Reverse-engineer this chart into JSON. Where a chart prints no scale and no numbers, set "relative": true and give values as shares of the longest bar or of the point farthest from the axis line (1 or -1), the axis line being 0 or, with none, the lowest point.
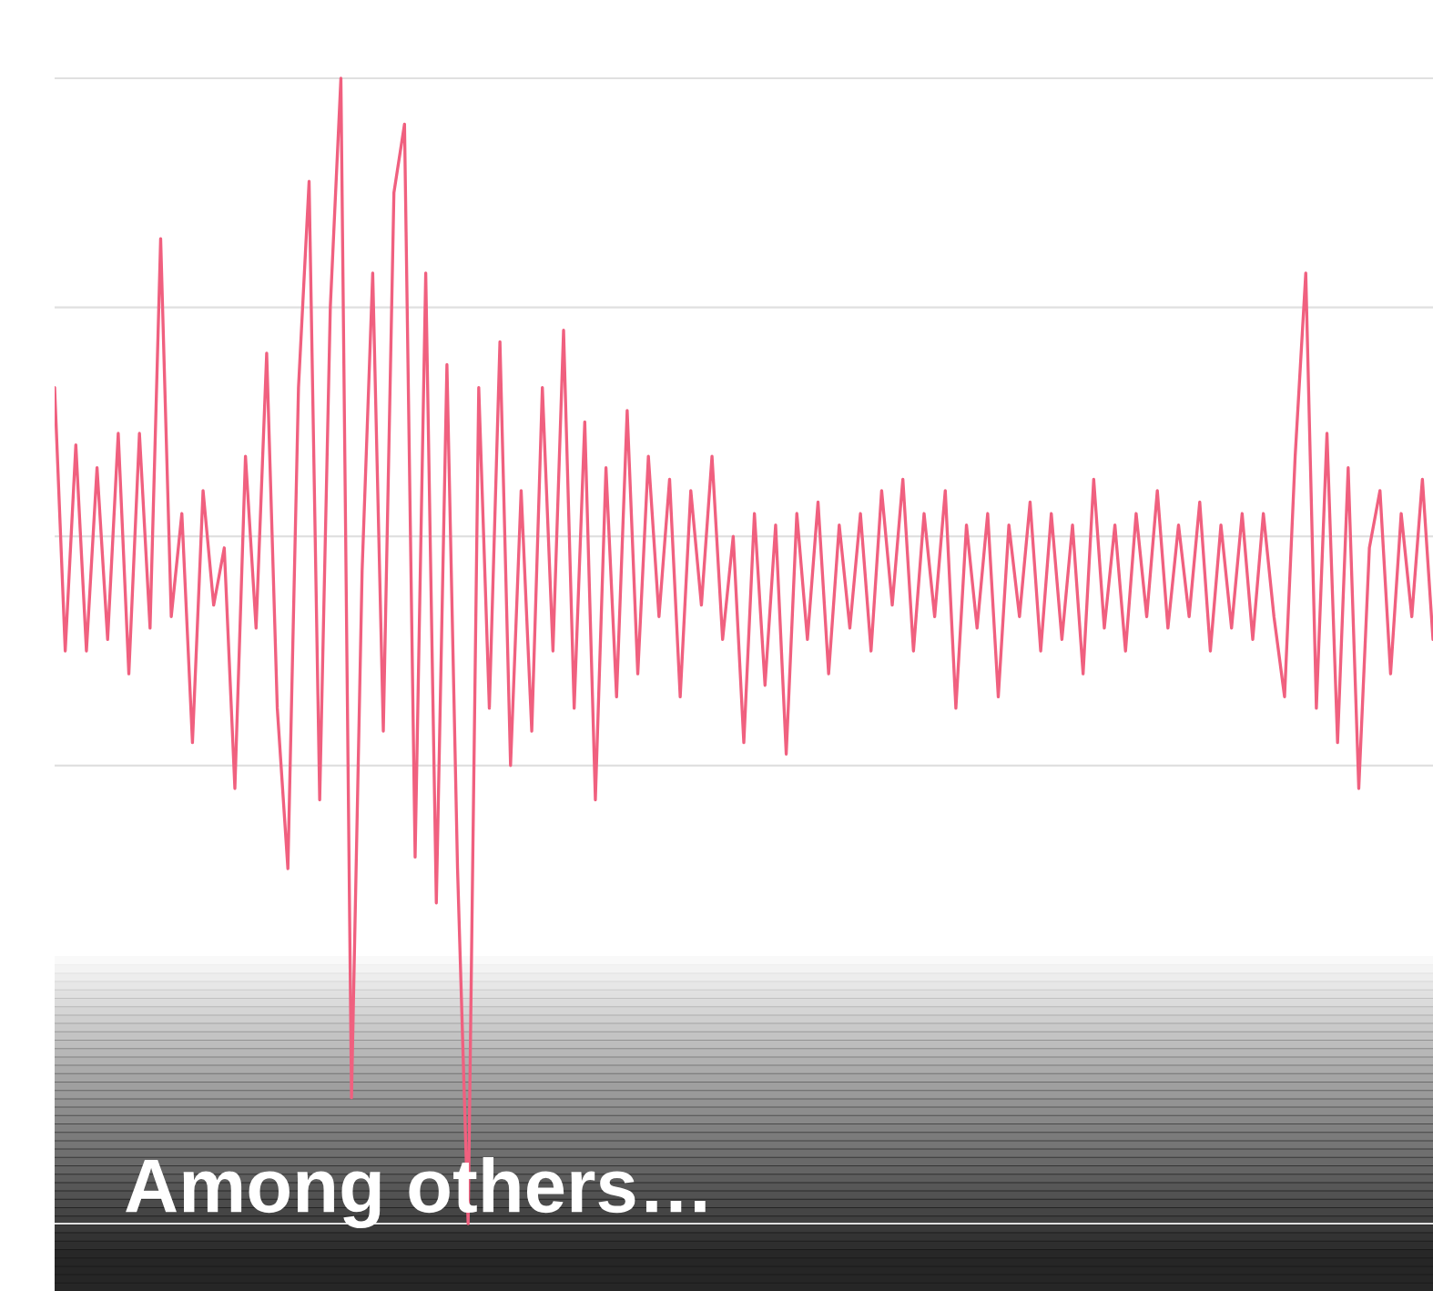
{
  "chart_data": {
    "type": "line",
    "title": "Among others…",
    "relative": true,
    "grid": "y",
    "legend": false,
    "categories": [
      null,
      null,
      null,
      null,
      null,
      null,
      null,
      null,
      null,
      null,
      null,
      null,
      null,
      null,
      null,
      null,
      null,
      null,
      null,
      null,
      null,
      null,
      null,
      null,
      null,
      null,
      null,
      null,
      null,
      null,
      null,
      null,
      null,
      null,
      null,
      null,
      null,
      null,
      null,
      null,
      null,
      null,
      null,
      null,
      null,
      null,
      null,
      null,
      null,
      null,
      null,
      null,
      null,
      null,
      null,
      null,
      null,
      null,
      null,
      null,
      null,
      null,
      null,
      null,
      null,
      null,
      null,
      null,
      null,
      null,
      null,
      null,
      null,
      null,
      null,
      null,
      null,
      null,
      null,
      null,
      null,
      null,
      null,
      null,
      null,
      null,
      null,
      null,
      null,
      null,
      null,
      null,
      null,
      null,
      null,
      null,
      null,
      null,
      null,
      null,
      null,
      null,
      null,
      null,
      null,
      null,
      null,
      null,
      null,
      null,
      null,
      null,
      null,
      null,
      null,
      null,
      null,
      null,
      null,
      null,
      null,
      null,
      null,
      null,
      null,
      null,
      null,
      null,
      null,
      null,
      null
    ],
    "series": [
      {
        "color": "#f0607f",
        "values": [
          0.73,
          0.5,
          0.68,
          0.5,
          0.66,
          0.51,
          0.69,
          0.48,
          0.69,
          0.52,
          0.86,
          0.53,
          0.62,
          0.42,
          0.64,
          0.54,
          0.59,
          0.38,
          0.67,
          0.52,
          0.76,
          0.45,
          0.31,
          0.73,
          0.91,
          0.37,
          0.8,
          1,
          0.11,
          0.57,
          0.83,
          0.43,
          0.9,
          0.96,
          0.32,
          0.83,
          0.28,
          0.75,
          0.31,
          0,
          0.73,
          0.45,
          0.77,
          0.4,
          0.64,
          0.43,
          0.73,
          0.5,
          0.78,
          0.45,
          0.7,
          0.37,
          0.66,
          0.46,
          0.71,
          0.48,
          0.67,
          0.53,
          0.65,
          0.46,
          0.64,
          0.54,
          0.67,
          0.51,
          0.6,
          0.42,
          0.62,
          0.47,
          0.61,
          0.41,
          0.62,
          0.51,
          0.63,
          0.48,
          0.61,
          0.52,
          0.62,
          0.5,
          0.64,
          0.54,
          0.65,
          0.5,
          0.62,
          0.53,
          0.64,
          0.45,
          0.61,
          0.52,
          0.62,
          0.46,
          0.61,
          0.53,
          0.63,
          0.5,
          0.62,
          0.51,
          0.61,
          0.48,
          0.65,
          0.52,
          0.61,
          0.5,
          0.62,
          0.53,
          0.64,
          0.52,
          0.61,
          0.53,
          0.63,
          0.5,
          0.61,
          0.52,
          0.62,
          0.51,
          0.62,
          0.53,
          0.46,
          0.67,
          0.83,
          0.45,
          0.69,
          0.42,
          0.66,
          0.38,
          0.59,
          0.64,
          0.48,
          0.62,
          0.53,
          0.65,
          0.51
        ]
      }
    ]
  }
}
